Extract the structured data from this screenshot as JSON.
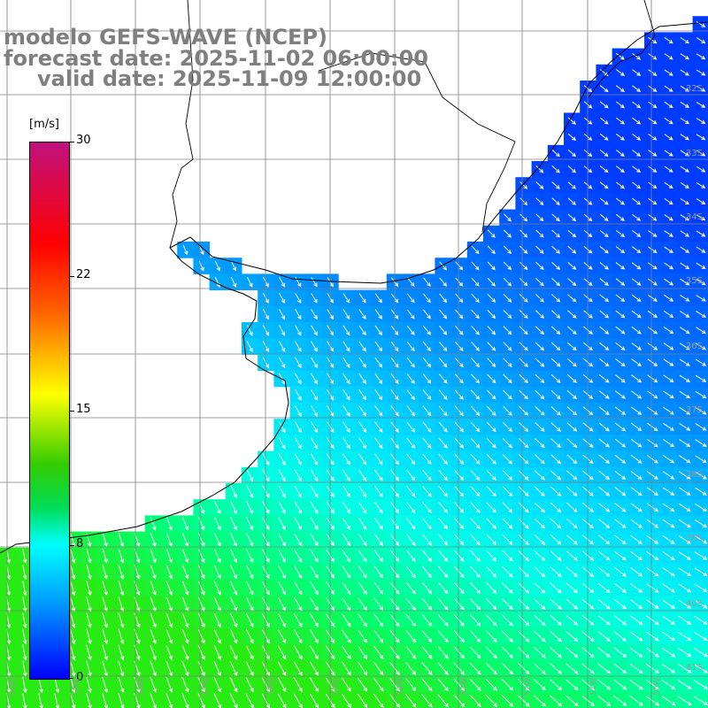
{
  "title": {
    "line1": "modelo GEFS-WAVE (NCEP)",
    "line2": "forecast date: 2025-11-02 06:00:00",
    "line3": "valid date: 2025-11-09 12:00:00"
  },
  "colorbar": {
    "unit": "[m/s]",
    "ticks": [
      "30",
      "22",
      "15",
      "8",
      "0"
    ],
    "colors": [
      "#c0117e",
      "#ff0000",
      "#ff6600",
      "#ffff00",
      "#33cc00",
      "#00dd55",
      "#00ffff",
      "#0099ff",
      "#0000ff"
    ]
  },
  "latitude_labels": [
    "32S",
    "33S",
    "34S",
    "35S",
    "36S",
    "37S",
    "38S",
    "39S",
    "40S",
    "41S"
  ],
  "longitude_labels": [
    "60W",
    "59W",
    "58W",
    "57W",
    "56W",
    "55W",
    "54W",
    "53W",
    "52W",
    "51W",
    "50W"
  ],
  "colors": {
    "land": "#ffffff",
    "coastline": "#000000",
    "grid": "#808080",
    "arrows": "#ffffff",
    "title_text": "#7f7f7f"
  }
}
